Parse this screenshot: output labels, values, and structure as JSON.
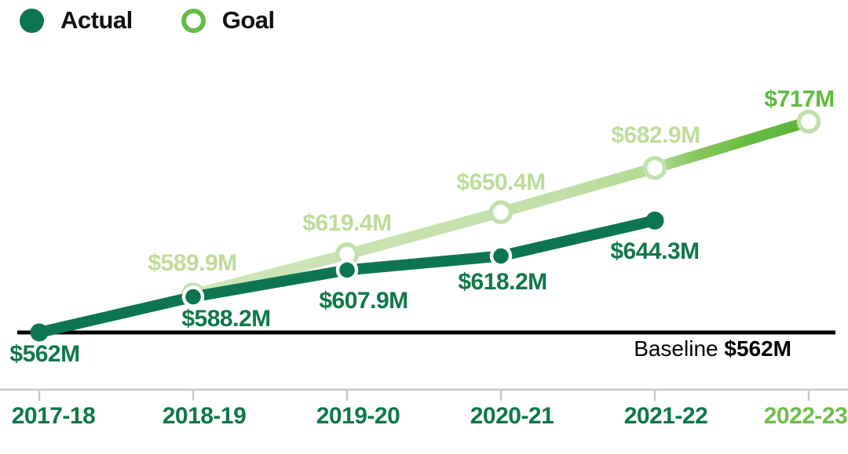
{
  "legend": {
    "actual_label": "Actual",
    "goal_label": "Goal"
  },
  "baseline_note": {
    "prefix": "Baseline",
    "value": "$562M"
  },
  "colors": {
    "actual_line": "#0D7650",
    "actual_text": "#107849",
    "goal_gradient_start": "#D0E6BC",
    "goal_gradient_mid": "#B2D992",
    "goal_gradient_end": "#59B439",
    "goal_label": "#BEDD9A",
    "goal_final_label": "#5FBB40",
    "goal_marker_ring": "#C3E0AC",
    "axis_final_year": "#6FBE4B",
    "axis_gray": "#C9C9C9",
    "baseline_black": "#000000",
    "legend_text": "#111111"
  },
  "chart_data": {
    "type": "line",
    "categories": [
      "2017-18",
      "2018-19",
      "2019-20",
      "2020-21",
      "2021-22",
      "2022-23"
    ],
    "series": [
      {
        "name": "Actual",
        "values": [
          562,
          588.2,
          607.9,
          618.2,
          644.3,
          null
        ],
        "point_labels": [
          "$562M",
          "$588.2M",
          "$607.9M",
          "$618.2M",
          "$644.3M",
          ""
        ]
      },
      {
        "name": "Goal",
        "values": [
          null,
          589.9,
          619.4,
          650.4,
          682.9,
          717
        ],
        "point_labels": [
          "",
          "$589.9M",
          "$619.4M",
          "$650.4M",
          "$682.9M",
          "$717M"
        ]
      }
    ],
    "baseline": {
      "value": 562,
      "label": "Baseline $562M"
    },
    "ylim": [
      562,
      730
    ],
    "grid": false,
    "legend_position": "top-left"
  }
}
